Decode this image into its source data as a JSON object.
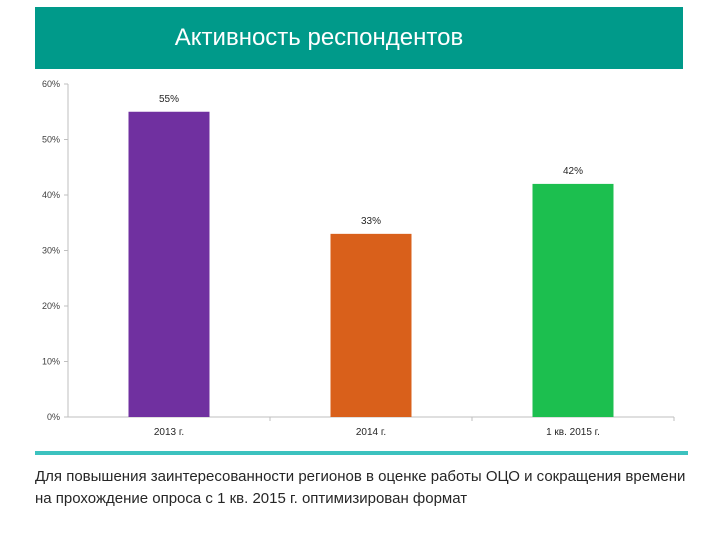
{
  "title": "Активность респондентов",
  "chart_data": {
    "type": "bar",
    "title": "Активность респондентов",
    "categories": [
      "2013 г.",
      "2014 г.",
      "1 кв. 2015 г."
    ],
    "values": [
      55,
      33,
      42
    ],
    "data_labels": [
      "55%",
      "33%",
      "42%"
    ],
    "colors": [
      "#7030a0",
      "#d9601b",
      "#1cbf4f"
    ],
    "ylim": [
      0,
      60
    ],
    "yticks": [
      0,
      10,
      20,
      30,
      40,
      50,
      60
    ],
    "ytick_labels": [
      "0%",
      "10%",
      "20%",
      "30%",
      "40%",
      "50%",
      "60%"
    ],
    "xlabel": "",
    "ylabel": "",
    "grid": false,
    "legend": "none"
  },
  "caption": "Для повышения заинтересованности регионов в оценке работы ОЦО и сокращения времени на прохождение опроса с 1 кв. 2015 г. оптимизирован формат"
}
